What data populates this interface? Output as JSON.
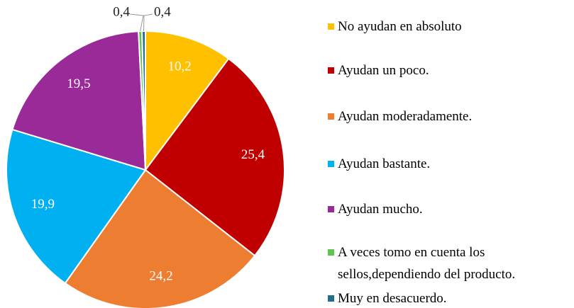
{
  "chart_data": {
    "type": "pie",
    "categories": [
      "No ayudan en absoluto",
      "Ayudan un poco.",
      "Ayudan moderadamente.",
      "Ayudan bastante.",
      "Ayudan mucho.",
      "A veces tomo en cuenta los sellos,dependiendo del producto.",
      "Muy en desacuerdo."
    ],
    "values": [
      10.2,
      25.4,
      24.2,
      19.9,
      19.5,
      0.4,
      0.4
    ],
    "value_labels": [
      "10,2",
      "25,4",
      "24,2",
      "19,9",
      "19,5",
      "0,4",
      "0,4"
    ],
    "colors": [
      "#FFC000",
      "#C00000",
      "#ED7D31",
      "#00B0F0",
      "#9A2A98",
      "#5FC34F",
      "#1F6E8C"
    ],
    "legend": "right"
  }
}
